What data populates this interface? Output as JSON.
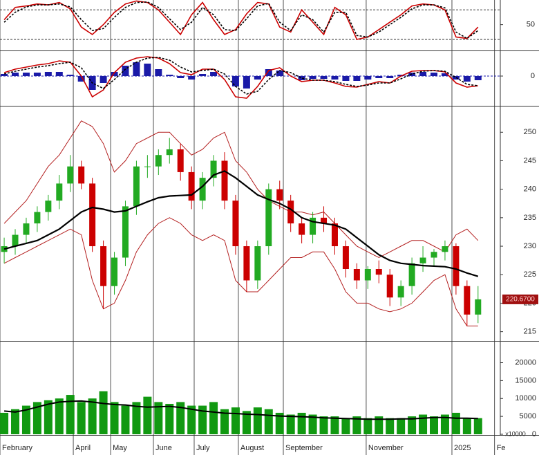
{
  "chart_data": [
    {
      "type": "stochastic",
      "xlim": [
        -0.38,
        45.02
      ],
      "ylim": [
        -1,
        100
      ],
      "yticks": [
        50
      ],
      "levels": [
        20,
        80
      ],
      "series": [
        {
          "color": "#cc0000",
          "style": "solid",
          "values": [
            60,
            85,
            88,
            92,
            90,
            95,
            82,
            45,
            30,
            50,
            75,
            92,
            98,
            95,
            80,
            55,
            30,
            70,
            95,
            60,
            30,
            40,
            72,
            95,
            92,
            45,
            35,
            80,
            55,
            30,
            85,
            70,
            20,
            25,
            40,
            55,
            70,
            88,
            92,
            90,
            80,
            25,
            22,
            45
          ]
        },
        {
          "color": "#000000",
          "style": "dashed",
          "values": [
            55,
            75,
            86,
            90,
            90,
            92,
            86,
            60,
            38,
            42,
            65,
            85,
            95,
            96,
            85,
            62,
            40,
            55,
            85,
            70,
            40,
            38,
            62,
            88,
            93,
            55,
            38,
            70,
            60,
            35,
            75,
            75,
            28,
            25,
            35,
            50,
            65,
            82,
            90,
            90,
            84,
            35,
            22,
            38
          ]
        }
      ]
    },
    {
      "type": "macd",
      "xlim": [
        -0.38,
        45.02
      ],
      "ylim": [
        -4.2,
        3.5
      ],
      "yticks": [
        0
      ],
      "hist_color": "#1a1aa8",
      "histogram": [
        0.3,
        0.5,
        0.5,
        0.5,
        0.6,
        0.6,
        0.2,
        -0.8,
        -2.0,
        -1.0,
        0.6,
        1.5,
        2.0,
        1.8,
        1.0,
        0.2,
        -0.3,
        -0.5,
        0.3,
        0.6,
        0,
        -1.5,
        -1.8,
        -0.5,
        1.0,
        0.8,
        0,
        -0.6,
        -0.4,
        -0.4,
        -0.5,
        -0.7,
        -0.7,
        -0.5,
        -0.3,
        -0.3,
        0.2,
        0.5,
        0.6,
        0.5,
        0.4,
        -0.5,
        -0.8,
        -0.6
      ],
      "series": [
        {
          "color": "#cc0000",
          "style": "solid",
          "values": [
            0.5,
            1.0,
            1.3,
            1.6,
            1.8,
            2.2,
            2.0,
            0,
            -3.0,
            -2.0,
            0.5,
            2.0,
            2.6,
            2.8,
            2.6,
            1.8,
            0.5,
            0.2,
            1.0,
            1.0,
            -0.5,
            -3.0,
            -3.2,
            -1.5,
            0.8,
            1.2,
            0,
            -0.8,
            -0.6,
            -0.6,
            -1.0,
            -1.5,
            -1.6,
            -1.2,
            -0.8,
            -1.0,
            0,
            0.7,
            0.8,
            0.8,
            0.6,
            -1.0,
            -1.6,
            -1.4
          ]
        },
        {
          "color": "#000000",
          "style": "dashed",
          "values": [
            0.3,
            0.7,
            1.0,
            1.3,
            1.5,
            1.8,
            2.0,
            1.2,
            -1.0,
            -1.8,
            -0.5,
            1.0,
            2.0,
            2.6,
            2.7,
            2.3,
            1.3,
            0.6,
            0.8,
            1.0,
            0.3,
            -1.5,
            -2.6,
            -2.2,
            -0.5,
            0.8,
            0.5,
            -0.3,
            -0.6,
            -0.6,
            -0.8,
            -1.2,
            -1.5,
            -1.3,
            -1.0,
            -1.0,
            -0.4,
            0.3,
            0.7,
            0.8,
            0.7,
            -0.2,
            -1.2,
            -1.4
          ]
        }
      ]
    },
    {
      "type": "candlestick",
      "xlim": [
        -0.38,
        45.02
      ],
      "ylim": [
        213.5,
        254.4
      ],
      "yticks": [
        215,
        220,
        225,
        230,
        235,
        240,
        245,
        250
      ],
      "up_color": "#22aa22",
      "down_color": "#cc0000",
      "open": [
        229,
        230,
        232,
        234,
        236,
        238,
        241,
        244,
        241,
        230,
        223,
        228,
        237,
        244,
        244,
        246,
        247,
        243,
        238,
        242,
        245,
        238,
        230,
        224,
        230,
        240,
        238,
        234,
        232,
        235,
        234,
        230,
        226,
        224,
        226,
        225,
        221,
        223,
        227,
        228,
        229,
        230,
        223,
        218
      ],
      "high": [
        231.5,
        233,
        235,
        237,
        239,
        242.5,
        246,
        245,
        242,
        231,
        229,
        238,
        245,
        246,
        247,
        249,
        248,
        244,
        243,
        246,
        246.5,
        239,
        231,
        231,
        241,
        241.5,
        239,
        235,
        236,
        237,
        235,
        231,
        227,
        226.5,
        227.5,
        226,
        224,
        228,
        230,
        229.5,
        231,
        230.5,
        224,
        223
      ],
      "low": [
        227,
        228.5,
        230.5,
        232.5,
        234.5,
        236.5,
        239.5,
        240,
        229,
        219,
        221.5,
        226.5,
        235.5,
        242,
        242.5,
        244.5,
        241.5,
        236.5,
        236.5,
        240.5,
        236.5,
        228.5,
        222,
        222.5,
        228.5,
        236.5,
        232.5,
        230.5,
        230.5,
        232.5,
        228.5,
        224.5,
        222.5,
        222.5,
        223.5,
        219.5,
        219.5,
        221.5,
        225.5,
        226.5,
        227.5,
        221.5,
        216,
        216.5
      ],
      "close": [
        230,
        232,
        234,
        236,
        238,
        241,
        244,
        241,
        230,
        223,
        228,
        237,
        244,
        244,
        246,
        247,
        243,
        238,
        242,
        245,
        238,
        230,
        224,
        230,
        240,
        238,
        234,
        232,
        235,
        234,
        230,
        226,
        224,
        226,
        225,
        221,
        223,
        227,
        228,
        229,
        230,
        223,
        218,
        220.67
      ],
      "series": [
        {
          "color": "#000000",
          "width": 2.2,
          "values": [
            229.5,
            230,
            230.5,
            231,
            232,
            233,
            234.5,
            236,
            236.8,
            236.5,
            236,
            236.2,
            237,
            237.8,
            238.5,
            238.8,
            238.9,
            239,
            240.5,
            242.5,
            243.2,
            242,
            240.5,
            239,
            238.2,
            237.5,
            236.5,
            235,
            234.3,
            234,
            233.7,
            233,
            231.5,
            230,
            228.5,
            227.5,
            227,
            226.8,
            226.6,
            226.5,
            226.4,
            226,
            225.3,
            224.7
          ]
        },
        {
          "color": "#b42020",
          "width": 1,
          "values": [
            234,
            236,
            238,
            241,
            244,
            246,
            249,
            252,
            251,
            248,
            243,
            245,
            248,
            249,
            250,
            250,
            248,
            246,
            247,
            249,
            250,
            245,
            243,
            240,
            238,
            237,
            236,
            236,
            235.5,
            236,
            234,
            232,
            230,
            229,
            228,
            229,
            230,
            231,
            231,
            230,
            229,
            232,
            233,
            231
          ]
        },
        {
          "color": "#b42020",
          "width": 1,
          "values": [
            227,
            228,
            229,
            230,
            231,
            232,
            233,
            232,
            224,
            219,
            220,
            224,
            229,
            232,
            234,
            235,
            234,
            232,
            231,
            232,
            231,
            224,
            222,
            222,
            224,
            226,
            228,
            228,
            229,
            229,
            226,
            222,
            220,
            220,
            219,
            218.5,
            219,
            220,
            222,
            224,
            225,
            219,
            216,
            216
          ]
        }
      ],
      "last_label": {
        "value": 220.67,
        "label": "220.6700"
      },
      "last_color": "#a01010"
    },
    {
      "type": "volume",
      "xlim": [
        -0.38,
        45.02
      ],
      "ylim": [
        0,
        25700
      ],
      "yticks": [
        0,
        5000,
        10000,
        15000,
        20000
      ],
      "color": "#119911",
      "multiplier_label": "x10000",
      "values": [
        6000,
        7000,
        8000,
        9000,
        9500,
        10000,
        11000,
        9000,
        10000,
        12000,
        9000,
        8000,
        9000,
        10500,
        9000,
        8500,
        9000,
        8000,
        8000,
        9000,
        7000,
        7500,
        6500,
        7500,
        7000,
        6000,
        5500,
        6000,
        5500,
        5000,
        5000,
        4500,
        5000,
        4500,
        5000,
        4500,
        4500,
        5000,
        5500,
        5000,
        5500,
        6000,
        4500,
        4500
      ],
      "series": [
        {
          "color": "#000000",
          "width": 2,
          "values": [
            6500,
            6200,
            6800,
            7600,
            8400,
            9000,
            9200,
            9300,
            9000,
            8600,
            8300,
            8200,
            7800,
            7600,
            7700,
            7800,
            7500,
            7000,
            6500,
            6200,
            5900,
            5800,
            5600,
            5500,
            5300,
            5100,
            5000,
            4900,
            4800,
            4600,
            4500,
            4400,
            4300,
            4200,
            4200,
            4200,
            4300,
            4300,
            4500,
            4700,
            4700,
            4500,
            4500,
            4400
          ]
        }
      ],
      "xticks": [
        {
          "value": -0.38,
          "label": "February"
        },
        {
          "value": 6.27,
          "label": "April"
        },
        {
          "value": 9.66,
          "label": "May"
        },
        {
          "value": 13.54,
          "label": "June"
        },
        {
          "value": 17.24,
          "label": "July"
        },
        {
          "value": 21.25,
          "label": "August"
        },
        {
          "value": 25.33,
          "label": "September"
        },
        {
          "value": 32.85,
          "label": "November"
        },
        {
          "value": 40.63,
          "label": "2025"
        },
        {
          "value": 44.5,
          "label": "Fe"
        }
      ]
    }
  ]
}
